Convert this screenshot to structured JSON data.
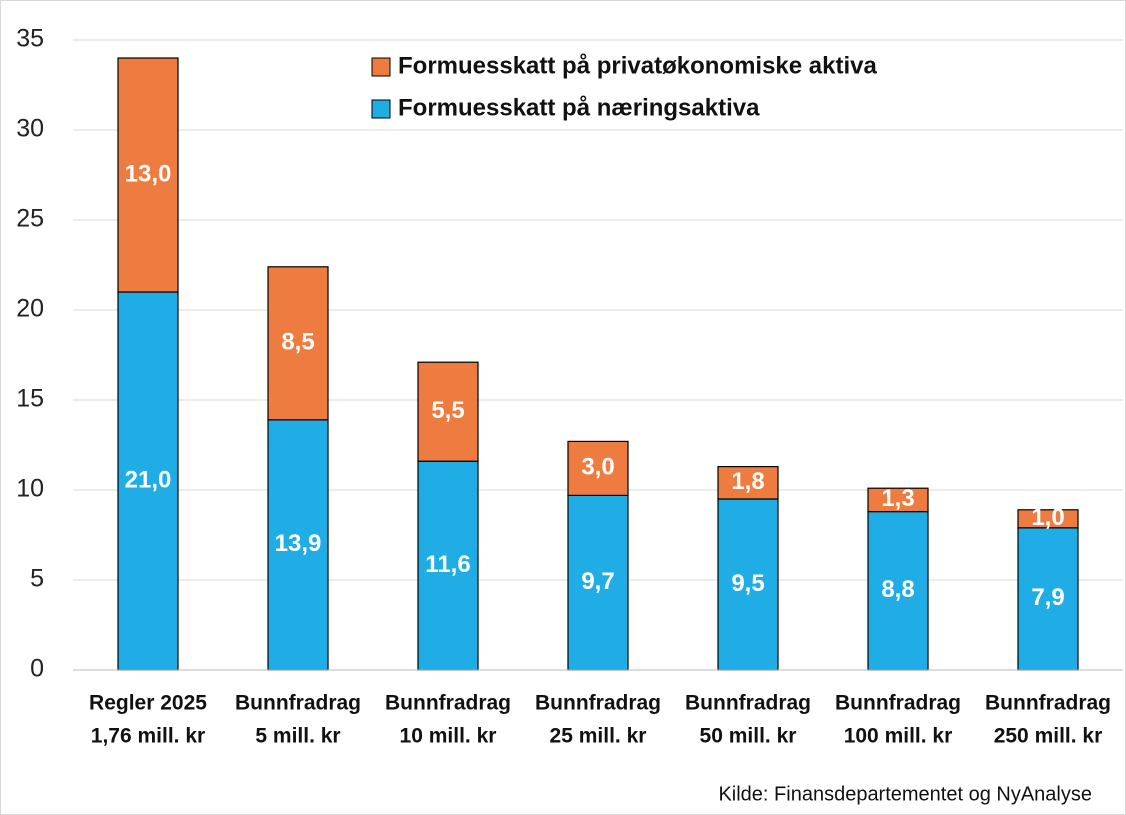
{
  "chart_data": {
    "type": "stacked_bar",
    "categories": [
      [
        "Regler 2025",
        "1,76 mill. kr"
      ],
      [
        "Bunnfradrag",
        "5 mill. kr"
      ],
      [
        "Bunnfradrag",
        "10 mill. kr"
      ],
      [
        "Bunnfradrag",
        "25 mill. kr"
      ],
      [
        "Bunnfradrag",
        "50 mill. kr"
      ],
      [
        "Bunnfradrag",
        "100 mill. kr"
      ],
      [
        "Bunnfradrag",
        "250 mill. kr"
      ]
    ],
    "series": [
      {
        "name": "Formuesskatt på næringsaktiva",
        "color": "#20ade5",
        "values": [
          21.0,
          13.9,
          11.6,
          9.7,
          9.5,
          8.8,
          7.9
        ],
        "value_labels": [
          "21,0",
          "13,9",
          "11,6",
          "9,7",
          "9,5",
          "8,8",
          "7,9"
        ]
      },
      {
        "name": "Formuesskatt på privatøkonomiske aktiva",
        "color": "#ee7b3f",
        "values": [
          13.0,
          8.5,
          5.5,
          3.0,
          1.8,
          1.3,
          1.0
        ],
        "value_labels": [
          "13,0",
          "8,5",
          "5,5",
          "3,0",
          "1,8",
          "1,3",
          "1,0"
        ]
      }
    ],
    "ylim": [
      0,
      35
    ],
    "yticks": [
      0,
      5,
      10,
      15,
      20,
      25,
      30,
      35
    ],
    "grid": true,
    "source": "Kilde: Finansdepartementet og NyAnalyse"
  }
}
